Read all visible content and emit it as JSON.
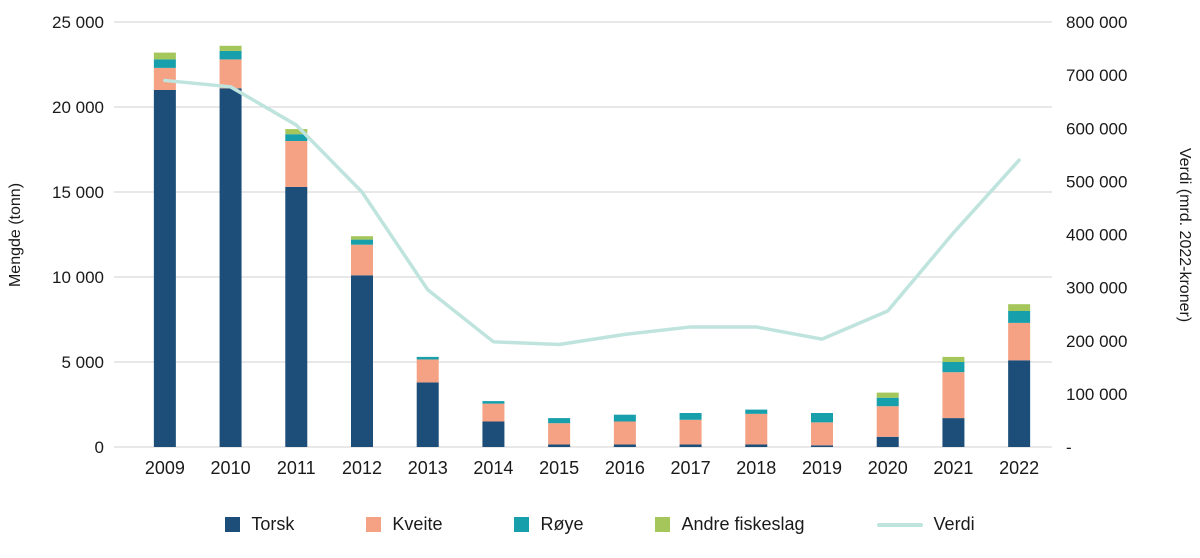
{
  "chart_data": {
    "type": "combo-stacked-bar-line",
    "title": "",
    "categories": [
      "2009",
      "2010",
      "2011",
      "2012",
      "2013",
      "2014",
      "2015",
      "2016",
      "2017",
      "2018",
      "2019",
      "2020",
      "2021",
      "2022"
    ],
    "bar_series": [
      {
        "name": "Torsk",
        "color": "#1d4e79",
        "values": [
          21000,
          21100,
          15300,
          10100,
          3800,
          1500,
          150,
          150,
          150,
          150,
          100,
          600,
          1700,
          5100
        ]
      },
      {
        "name": "Kveite",
        "color": "#f5a183",
        "values": [
          1300,
          1700,
          2700,
          1800,
          1350,
          1050,
          1250,
          1350,
          1450,
          1800,
          1350,
          1800,
          2700,
          2200
        ]
      },
      {
        "name": "Røye",
        "color": "#17a0ac",
        "values": [
          500,
          500,
          400,
          300,
          150,
          150,
          300,
          400,
          400,
          250,
          550,
          500,
          600,
          700
        ]
      },
      {
        "name": "Andre fiskeslag",
        "color": "#a4c65a",
        "values": [
          400,
          300,
          300,
          200,
          0,
          0,
          0,
          0,
          0,
          0,
          0,
          300,
          300,
          400
        ]
      }
    ],
    "line_series": {
      "name": "Verdi",
      "color": "#bfe4dd",
      "axis": "right",
      "values": [
        690000,
        678000,
        606000,
        480000,
        296000,
        198000,
        193000,
        212000,
        226000,
        226000,
        203000,
        256000,
        403000,
        540000
      ]
    },
    "left_axis": {
      "label": "Mengde (tonn)",
      "min": 0,
      "max": 25000,
      "step": 5000,
      "ticks": [
        "0",
        "5 000",
        "10 000",
        "15 000",
        "20 000",
        "25 000"
      ]
    },
    "right_axis": {
      "label": "Verdi (mrd. 2022-kroner)",
      "min": 0,
      "max": 800000,
      "step": 100000,
      "zero_label": "-",
      "ticks": [
        "-",
        "100 000",
        "200 000",
        "300 000",
        "400 000",
        "500 000",
        "600 000",
        "700 000",
        "800 000"
      ]
    },
    "layout": {
      "grid": "horizontal",
      "legend_position": "bottom",
      "gridline_color": "#d2d2d2"
    }
  }
}
